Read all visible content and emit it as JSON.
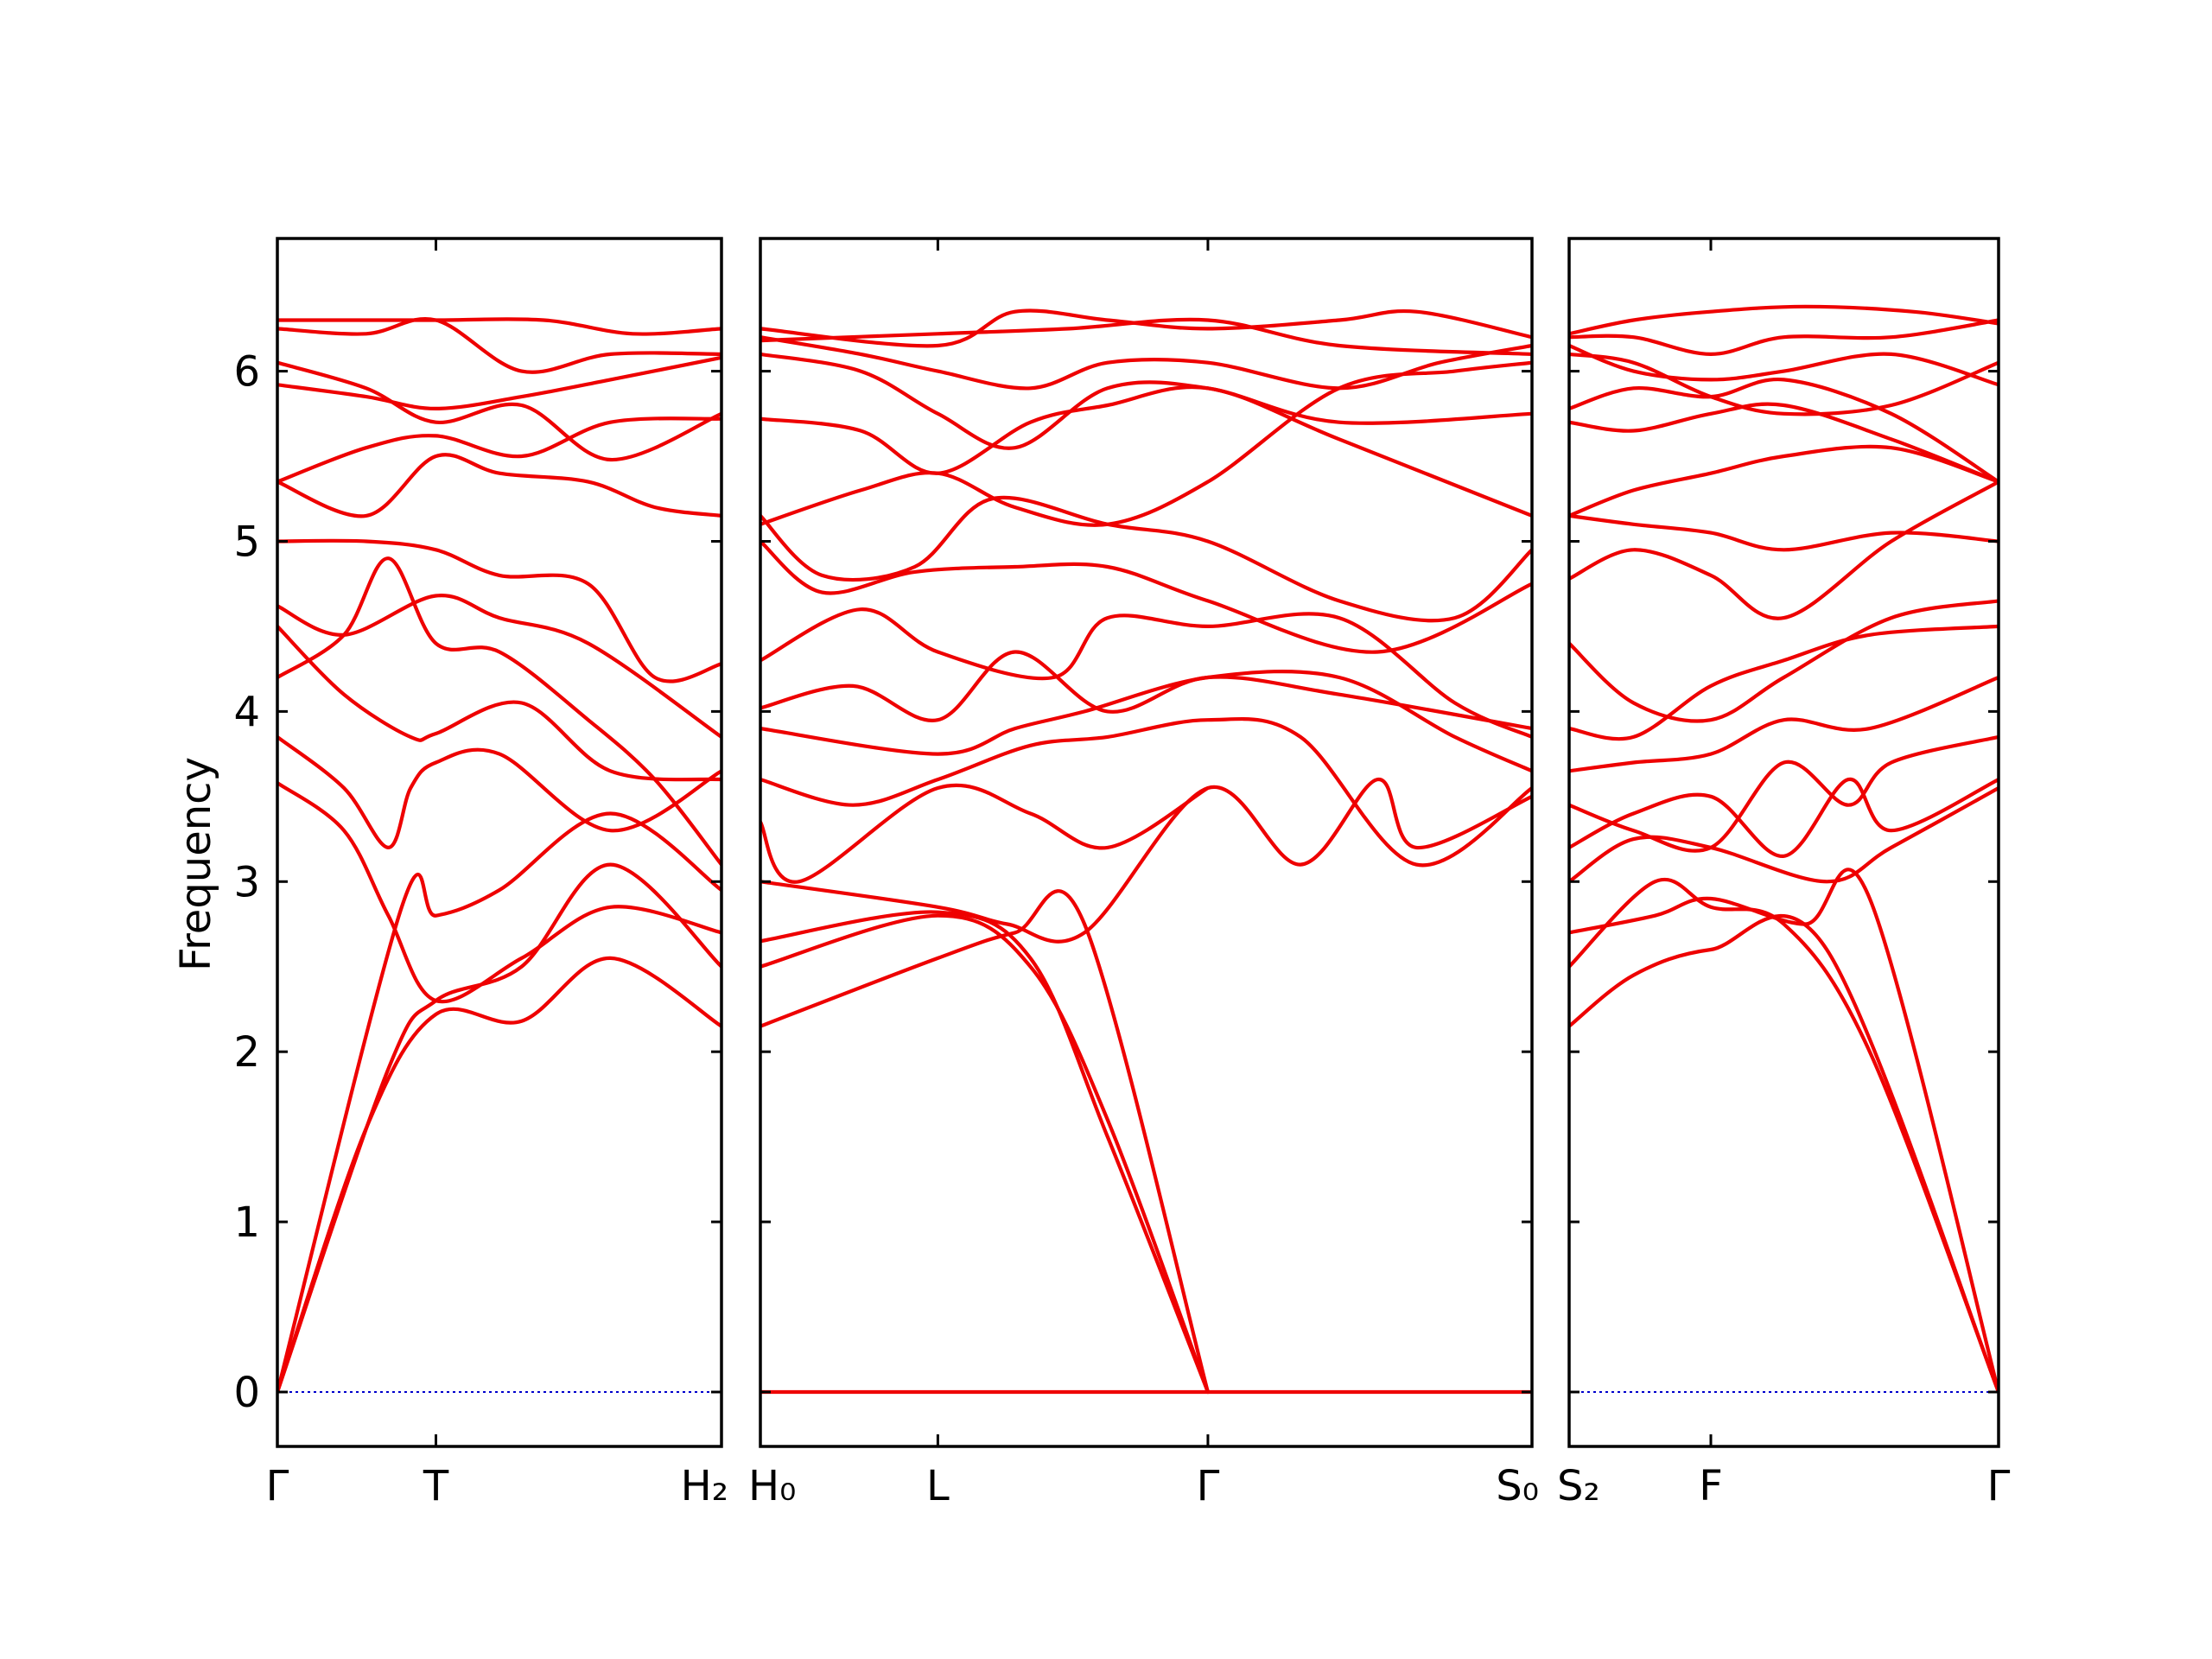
{
  "chart_data": {
    "type": "line",
    "ylabel": "Frequency",
    "ylim": [
      -0.32,
      6.78
    ],
    "yticks": [
      0,
      1,
      2,
      3,
      4,
      5,
      6
    ],
    "grid": false,
    "legend": "none",
    "colors": {
      "bands": "#ee0000",
      "zero_line": "#0000cc"
    },
    "panels": [
      {
        "x_range": [
          0,
          1
        ],
        "xticks": [
          {
            "x": 0,
            "label": "Γ"
          },
          {
            "x": 0.357,
            "label": "T"
          },
          {
            "x": 1,
            "label": "H₂"
          }
        ],
        "series": [
          {
            "x": [
              0,
              0.28,
              0.357,
              0.5,
              0.75,
              1
            ],
            "values": [
              0,
              2.85,
              2.8,
              2.95,
              3.4,
              2.95
            ]
          },
          {
            "x": [
              0,
              0.2,
              0.357,
              0.55,
              0.75,
              1
            ],
            "values": [
              0,
              1.55,
              2.22,
              2.18,
              2.55,
              2.15
            ]
          },
          {
            "x": [
              0,
              0.25,
              0.357,
              0.55,
              0.75,
              1
            ],
            "values": [
              0,
              1.9,
              2.3,
              2.5,
              3.1,
              2.5
            ]
          },
          {
            "x": [
              0,
              0.15,
              0.25,
              0.357,
              0.55,
              0.75,
              1
            ],
            "values": [
              3.58,
              3.3,
              2.8,
              2.3,
              2.55,
              2.85,
              2.7
            ]
          },
          {
            "x": [
              0,
              0.15,
              0.25,
              0.3,
              0.357,
              0.5,
              0.75,
              1
            ],
            "values": [
              3.85,
              3.55,
              3.2,
              3.55,
              3.7,
              3.75,
              3.3,
              3.65
            ]
          },
          {
            "x": [
              0,
              0.15,
              0.3,
              0.357,
              0.55,
              0.75,
              1
            ],
            "values": [
              4.5,
              4.1,
              3.85,
              3.87,
              4.05,
              3.65,
              3.6
            ]
          },
          {
            "x": [
              0,
              0.15,
              0.25,
              0.357,
              0.5,
              0.7,
              0.85,
              1
            ],
            "values": [
              4.2,
              4.45,
              4.9,
              4.4,
              4.35,
              3.95,
              3.6,
              3.1
            ]
          },
          {
            "x": [
              0,
              0.15,
              0.357,
              0.5,
              0.7,
              1
            ],
            "values": [
              4.62,
              4.45,
              4.68,
              4.55,
              4.4,
              3.85
            ]
          },
          {
            "x": [
              0,
              0.2,
              0.357,
              0.5,
              0.7,
              0.85,
              1
            ],
            "values": [
              5.0,
              5.0,
              4.95,
              4.8,
              4.75,
              4.2,
              4.28
            ]
          },
          {
            "x": [
              0,
              0.2,
              0.357,
              0.5,
              0.7,
              0.85,
              1
            ],
            "values": [
              5.35,
              5.15,
              5.5,
              5.4,
              5.35,
              5.2,
              5.15
            ]
          },
          {
            "x": [
              0,
              0.2,
              0.357,
              0.55,
              0.75,
              1
            ],
            "values": [
              5.35,
              5.55,
              5.62,
              5.5,
              5.7,
              5.72
            ]
          },
          {
            "x": [
              0,
              0.2,
              0.357,
              0.55,
              0.75,
              1
            ],
            "values": [
              5.92,
              5.85,
              5.78,
              5.85,
              5.95,
              6.08
            ]
          },
          {
            "x": [
              0,
              0.2,
              0.357,
              0.55,
              0.75,
              1
            ],
            "values": [
              6.05,
              5.9,
              5.7,
              5.8,
              5.48,
              5.75
            ]
          },
          {
            "x": [
              0,
              0.2,
              0.357,
              0.55,
              0.75,
              1
            ],
            "values": [
              6.25,
              6.22,
              6.3,
              6.0,
              6.1,
              6.1
            ]
          },
          {
            "x": [
              0,
              0.2,
              0.357,
              0.6,
              0.8,
              1
            ],
            "values": [
              6.3,
              6.3,
              6.3,
              6.3,
              6.22,
              6.25
            ]
          }
        ]
      },
      {
        "x_range": [
          0,
          1
        ],
        "xticks": [
          {
            "x": 0,
            "label": "H₀"
          },
          {
            "x": 0.23,
            "label": "L"
          },
          {
            "x": 0.58,
            "label": "Γ"
          },
          {
            "x": 1,
            "label": "S₀"
          }
        ],
        "series": [
          {
            "x": [
              0,
              0.23,
              0.33,
              0.42,
              0.58
            ],
            "values": [
              2.15,
              2.55,
              2.7,
              2.75,
              0
            ]
          },
          {
            "x": [
              0,
              0.23,
              0.35,
              0.45,
              0.58
            ],
            "values": [
              2.5,
              2.8,
              2.5,
              1.6,
              0
            ]
          },
          {
            "x": [
              0,
              0.23,
              0.35,
              0.45,
              0.58
            ],
            "values": [
              2.65,
              2.82,
              2.55,
              1.5,
              0
            ]
          },
          {
            "x": [
              0,
              0.23,
              0.32,
              0.42,
              0.58,
              0.7,
              0.8,
              0.85,
              1
            ],
            "values": [
              3.0,
              2.85,
              2.75,
              2.7,
              3.55,
              3.1,
              3.6,
              3.2,
              3.5
            ]
          },
          {
            "x": [
              0,
              0.05,
              0.23,
              0.35,
              0.45,
              0.58
            ],
            "values": [
              3.35,
              3.0,
              3.55,
              3.4,
              3.2,
              3.55
            ]
          },
          {
            "x": [
              0,
              0.12,
              0.23,
              0.35,
              0.45,
              0.58,
              0.7,
              0.85,
              1
            ],
            "values": [
              3.6,
              3.45,
              3.6,
              3.8,
              3.85,
              3.95,
              3.85,
              3.1,
              3.55
            ]
          },
          {
            "x": [
              0,
              0.23,
              0.33,
              0.42,
              0.58,
              0.75,
              0.9,
              1
            ],
            "values": [
              3.9,
              3.75,
              3.9,
              4.0,
              4.2,
              4.2,
              3.85,
              3.65
            ]
          },
          {
            "x": [
              0,
              0.12,
              0.23,
              0.33,
              0.45,
              0.58,
              0.75,
              1
            ],
            "values": [
              4.02,
              4.15,
              3.95,
              4.35,
              4.0,
              4.2,
              4.1,
              3.9
            ]
          },
          {
            "x": [
              0,
              0.13,
              0.23,
              0.38,
              0.45,
              0.58,
              0.75,
              0.9,
              1
            ],
            "values": [
              4.3,
              4.6,
              4.35,
              4.2,
              4.55,
              4.5,
              4.55,
              4.05,
              3.85
            ]
          },
          {
            "x": [
              0,
              0.08,
              0.2,
              0.33,
              0.45,
              0.58,
              0.8,
              1
            ],
            "values": [
              5.0,
              4.7,
              4.82,
              4.85,
              4.85,
              4.65,
              4.35,
              4.75
            ]
          },
          {
            "x": [
              0,
              0.08,
              0.2,
              0.3,
              0.45,
              0.58,
              0.75,
              0.9,
              1
            ],
            "values": [
              5.15,
              4.8,
              4.85,
              5.25,
              5.1,
              5.0,
              4.65,
              4.55,
              4.95
            ]
          },
          {
            "x": [
              0,
              0.13,
              0.23,
              0.33,
              0.45,
              0.58,
              0.75,
              0.9,
              1
            ],
            "values": [
              5.1,
              5.3,
              5.4,
              5.2,
              5.1,
              5.35,
              5.9,
              6.0,
              6.05
            ]
          },
          {
            "x": [
              0,
              0.13,
              0.23,
              0.35,
              0.45,
              0.58,
              0.75,
              1
            ],
            "values": [
              5.72,
              5.65,
              5.4,
              5.7,
              5.8,
              5.9,
              5.6,
              5.15
            ]
          },
          {
            "x": [
              0,
              0.13,
              0.23,
              0.33,
              0.45,
              0.58,
              0.75,
              1
            ],
            "values": [
              6.1,
              6.0,
              5.75,
              5.55,
              5.9,
              5.9,
              5.7,
              5.75
            ]
          },
          {
            "x": [
              0,
              0.13,
              0.23,
              0.35,
              0.45,
              0.58,
              0.75,
              0.88,
              1
            ],
            "values": [
              6.2,
              6.1,
              6.0,
              5.9,
              6.05,
              6.05,
              5.9,
              6.05,
              6.15
            ]
          },
          {
            "x": [
              0,
              0.23,
              0.33,
              0.45,
              0.58,
              0.75,
              0.85,
              1
            ],
            "values": [
              6.25,
              6.15,
              6.35,
              6.3,
              6.25,
              6.3,
              6.35,
              6.2
            ]
          },
          {
            "x": [
              0,
              0.23,
              0.4,
              0.58,
              0.75,
              1
            ],
            "values": [
              6.18,
              6.22,
              6.25,
              6.3,
              6.15,
              6.1
            ]
          },
          {
            "x": [
              0,
              0.3,
              0.58,
              0.8,
              1
            ],
            "values": [
              0.0,
              0.0,
              0.0,
              0.0,
              0.0
            ]
          }
        ]
      },
      {
        "x_range": [
          0,
          1
        ],
        "xticks": [
          {
            "x": 0,
            "label": "S₂"
          },
          {
            "x": 0.33,
            "label": "F"
          },
          {
            "x": 1,
            "label": "Γ"
          }
        ],
        "series": [
          {
            "x": [
              0,
              0.15,
              0.33,
              0.6,
              1
            ],
            "values": [
              2.15,
              2.45,
              2.6,
              2.6,
              0
            ]
          },
          {
            "x": [
              0,
              0.2,
              0.33,
              0.5,
              0.7,
              1
            ],
            "values": [
              2.5,
              3.0,
              2.85,
              2.75,
              2.0,
              0
            ]
          },
          {
            "x": [
              0,
              0.2,
              0.33,
              0.55,
              0.7,
              1
            ],
            "values": [
              2.7,
              2.8,
              2.9,
              2.75,
              2.9,
              0
            ]
          },
          {
            "x": [
              0,
              0.15,
              0.33,
              0.6,
              0.75,
              1
            ],
            "values": [
              3.0,
              3.25,
              3.2,
              3.0,
              3.2,
              3.55
            ]
          },
          {
            "x": [
              0,
              0.15,
              0.33,
              0.5,
              0.65,
              0.75,
              1
            ],
            "values": [
              3.2,
              3.4,
              3.5,
              3.15,
              3.6,
              3.3,
              3.6
            ]
          },
          {
            "x": [
              0,
              0.15,
              0.33,
              0.5,
              0.65,
              0.75,
              1
            ],
            "values": [
              3.45,
              3.3,
              3.2,
              3.7,
              3.45,
              3.7,
              3.85
            ]
          },
          {
            "x": [
              0,
              0.15,
              0.33,
              0.5,
              0.7,
              1
            ],
            "values": [
              3.65,
              3.7,
              3.75,
              3.95,
              3.9,
              4.2
            ]
          },
          {
            "x": [
              0,
              0.15,
              0.33,
              0.5,
              0.7,
              1
            ],
            "values": [
              3.9,
              3.85,
              4.15,
              4.3,
              4.45,
              4.5
            ]
          },
          {
            "x": [
              0,
              0.15,
              0.33,
              0.5,
              0.75,
              1
            ],
            "values": [
              4.4,
              4.05,
              3.95,
              4.2,
              4.55,
              4.65
            ]
          },
          {
            "x": [
              0,
              0.15,
              0.33,
              0.5,
              0.75,
              1
            ],
            "values": [
              4.78,
              4.95,
              4.8,
              4.55,
              5.0,
              5.35
            ]
          },
          {
            "x": [
              0,
              0.15,
              0.33,
              0.5,
              0.75,
              1
            ],
            "values": [
              5.15,
              5.1,
              5.05,
              4.95,
              5.05,
              5.0
            ]
          },
          {
            "x": [
              0,
              0.15,
              0.33,
              0.5,
              0.75,
              1
            ],
            "values": [
              5.15,
              5.3,
              5.4,
              5.5,
              5.55,
              5.35
            ]
          },
          {
            "x": [
              0,
              0.15,
              0.33,
              0.5,
              0.75,
              1
            ],
            "values": [
              5.7,
              5.65,
              5.75,
              5.8,
              5.6,
              5.35
            ]
          },
          {
            "x": [
              0,
              0.15,
              0.33,
              0.5,
              0.75,
              1
            ],
            "values": [
              5.78,
              5.9,
              5.85,
              5.95,
              5.75,
              5.35
            ]
          },
          {
            "x": [
              0,
              0.15,
              0.33,
              0.5,
              0.75,
              1
            ],
            "values": [
              6.1,
              6.05,
              5.85,
              5.75,
              5.8,
              6.05
            ]
          },
          {
            "x": [
              0,
              0.15,
              0.33,
              0.5,
              0.75,
              1
            ],
            "values": [
              6.15,
              6.0,
              5.95,
              6.0,
              6.1,
              5.92
            ]
          },
          {
            "x": [
              0,
              0.15,
              0.33,
              0.5,
              0.75,
              1
            ],
            "values": [
              6.2,
              6.2,
              6.1,
              6.2,
              6.2,
              6.3
            ]
          },
          {
            "x": [
              0,
              0.15,
              0.33,
              0.55,
              0.8,
              1
            ],
            "values": [
              6.22,
              6.3,
              6.35,
              6.38,
              6.35,
              6.28
            ]
          }
        ]
      }
    ]
  }
}
